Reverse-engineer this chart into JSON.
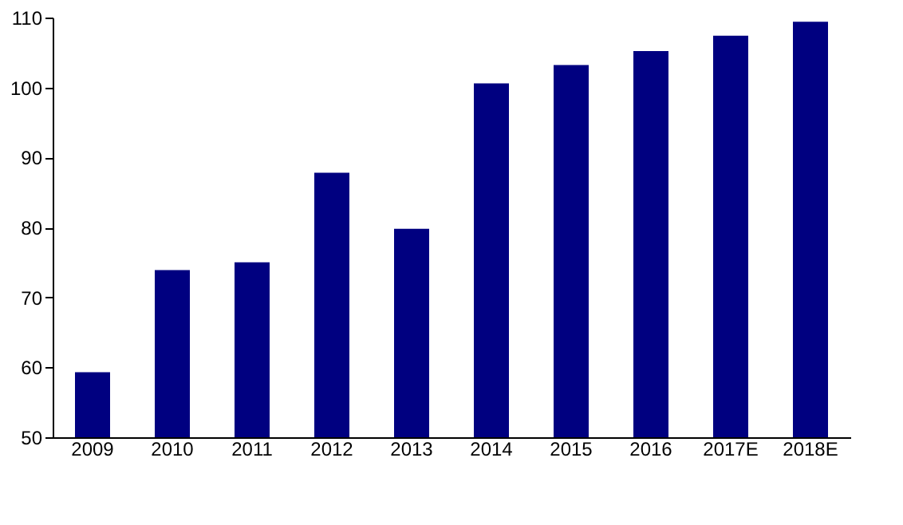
{
  "chart_data": {
    "type": "bar",
    "categories": [
      "2009",
      "2010",
      "2011",
      "2012",
      "2013",
      "2014",
      "2015",
      "2016",
      "2017E",
      "2018E"
    ],
    "values": [
      59.3,
      73.9,
      75.0,
      87.8,
      79.8,
      100.6,
      103.2,
      105.2,
      107.4,
      109.4
    ],
    "color": "#000080",
    "ylim": [
      50,
      110
    ],
    "yticks": [
      50,
      60,
      70,
      80,
      90,
      100,
      110
    ],
    "grid": false
  }
}
